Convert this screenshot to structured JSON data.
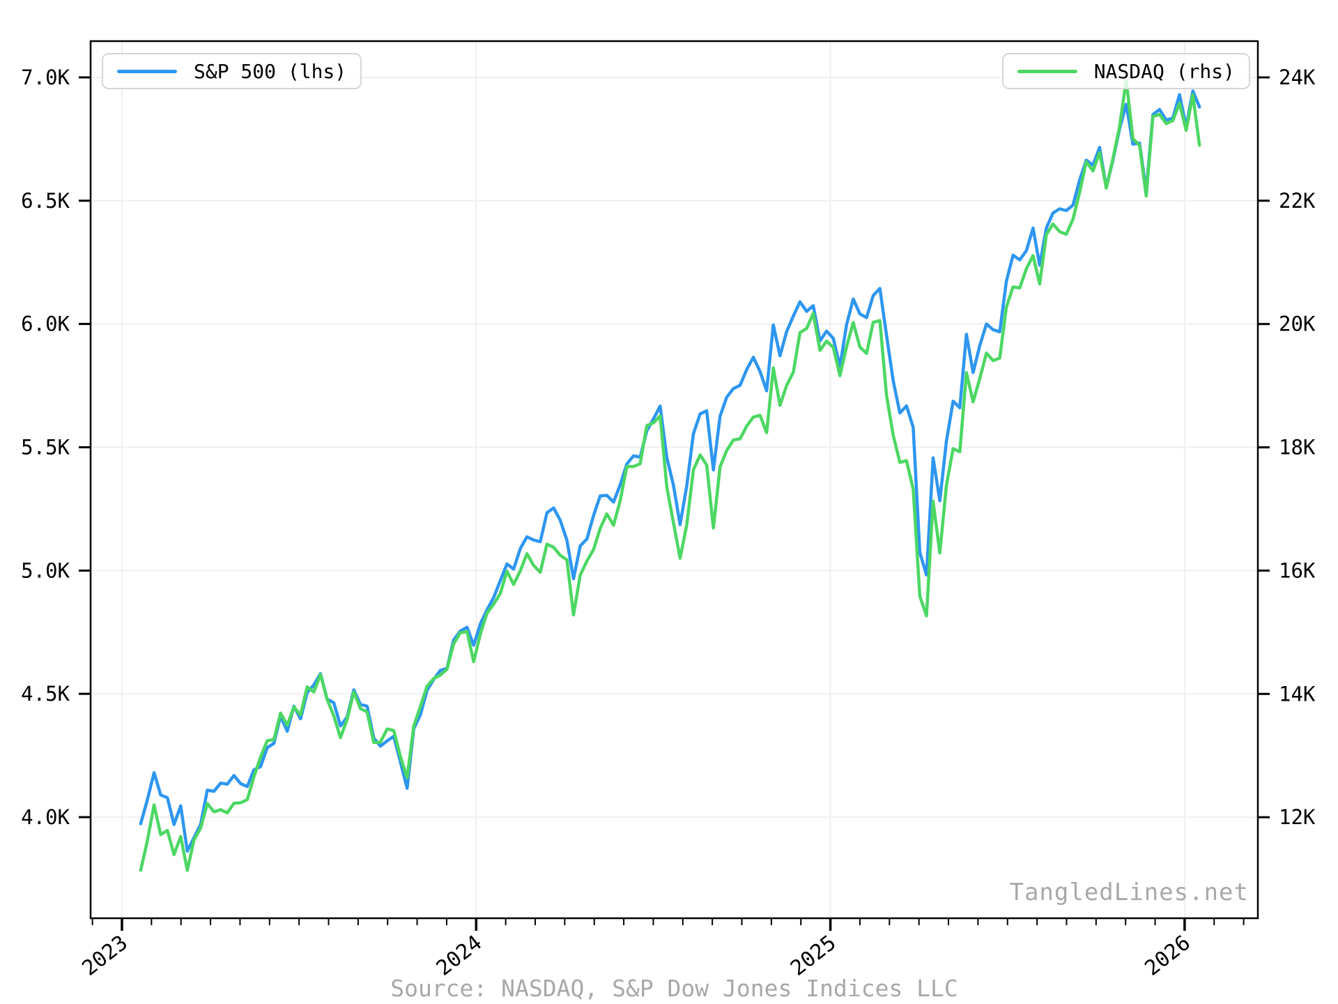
{
  "figure": {
    "watermark": "TangledLines.net",
    "source_note": "Source: NASDAQ, S&P Dow Jones Indices LLC",
    "background": "#ffffff"
  },
  "colors": {
    "sp500_line": "#2d96f0",
    "nasdaq_line": "#4cd763",
    "grid": "#efefef",
    "axis": "#000000",
    "muted_text": "#a8a8a8",
    "legend_border": "#d6d6d6"
  },
  "chart_data": {
    "type": "line",
    "title": "",
    "xlabel": "",
    "ylabel_left": "",
    "ylabel_right": "",
    "grid": true,
    "x_axis": {
      "tick_labels": [
        "2023",
        "2024",
        "2025",
        "2026"
      ],
      "tick_years": [
        2023,
        2024,
        2025,
        2026
      ],
      "minor_tick_interval_months": 1,
      "range_years": [
        2022.911,
        2026.207
      ]
    },
    "left_axis": {
      "tick_labels": [
        "7.0K",
        "6.5K",
        "6.0K",
        "5.5K",
        "5.0K",
        "4.5K",
        "4.0K"
      ],
      "tick_values": [
        7000,
        6500,
        6000,
        5500,
        5000,
        4500,
        4000
      ],
      "range": [
        3590,
        7147
      ]
    },
    "right_axis": {
      "tick_labels": [
        "24K",
        "22K",
        "20K",
        "18K",
        "16K",
        "14K",
        "12K"
      ],
      "tick_values": [
        24000,
        22000,
        20000,
        18000,
        16000,
        14000,
        12000
      ],
      "range": [
        10362,
        24588
      ]
    },
    "legend": [
      {
        "label": "S&P 500 (lhs)",
        "color": "#2d96f0",
        "position": "top-left"
      },
      {
        "label": "NASDAQ (rhs)",
        "color": "#4cd763",
        "position": "top-right"
      }
    ],
    "series": [
      {
        "name": "S&P 500 (lhs)",
        "axis": "left",
        "color": "#2d96f0",
        "x_start_year": 2023.053,
        "x_end_year": 2026.042,
        "values": [
          3973,
          4071,
          4180,
          4090,
          4079,
          3970,
          4046,
          3862,
          3917,
          3971,
          4109,
          4105,
          4138,
          4134,
          4169,
          4136,
          4124,
          4192,
          4205,
          4282,
          4299,
          4410,
          4348,
          4450,
          4399,
          4505,
          4536,
          4582,
          4478,
          4464,
          4370,
          4406,
          4516,
          4457,
          4450,
          4320,
          4288,
          4309,
          4328,
          4224,
          4117,
          4358,
          4415,
          4514,
          4559,
          4595,
          4604,
          4719,
          4755,
          4770,
          4697,
          4784,
          4840,
          4891,
          4959,
          5027,
          5006,
          5089,
          5137,
          5124,
          5117,
          5234,
          5254,
          5204,
          5123,
          4967,
          5100,
          5128,
          5223,
          5303,
          5305,
          5278,
          5347,
          5432,
          5465,
          5460,
          5567,
          5615,
          5667,
          5459,
          5346,
          5186,
          5344,
          5554,
          5635,
          5648,
          5408,
          5626,
          5703,
          5738,
          5751,
          5815,
          5865,
          5808,
          5729,
          5996,
          5871,
          5969,
          6032,
          6090,
          6051,
          6074,
          5931,
          5971,
          5942,
          5827,
          5997,
          6101,
          6041,
          6026,
          6115,
          6144,
          5955,
          5770,
          5639,
          5668,
          5581,
          5074,
          4982,
          5457,
          5283,
          5525,
          5687,
          5660,
          5958,
          5803,
          5912,
          6000,
          5977,
          5968,
          6173,
          6279,
          6260,
          6297,
          6389,
          6238,
          6389,
          6450,
          6467,
          6460,
          6482,
          6584,
          6664,
          6644,
          6716,
          6553,
          6664,
          6792,
          6891,
          6729,
          6734,
          6539,
          6849,
          6870,
          6827,
          6835,
          6930,
          6800,
          6945,
          6880
        ]
      },
      {
        "name": "NASDAQ (rhs)",
        "axis": "right",
        "color": "#4cd763",
        "x_start_year": 2023.053,
        "x_end_year": 2026.042,
        "values": [
          11140,
          11622,
          12200,
          11718,
          11787,
          11395,
          11689,
          11139,
          11631,
          11824,
          12222,
          12088,
          12123,
          12072,
          12227,
          12235,
          12285,
          12658,
          12976,
          13241,
          13259,
          13690,
          13493,
          13788,
          13661,
          14114,
          14033,
          14317,
          13909,
          13645,
          13291,
          13591,
          14032,
          13762,
          13708,
          13212,
          13219,
          13431,
          13407,
          12984,
          12643,
          13478,
          13798,
          14125,
          14251,
          14305,
          14404,
          14814,
          14993,
          15011,
          14524,
          14973,
          15311,
          15455,
          15629,
          15991,
          15776,
          15997,
          16275,
          16085,
          15973,
          16429,
          16379,
          16249,
          16175,
          15282,
          15928,
          16156,
          16341,
          16686,
          16921,
          16735,
          17133,
          17689,
          17689,
          17733,
          18353,
          18398,
          18509,
          17358,
          16776,
          16200,
          16745,
          17632,
          17877,
          17714,
          16691,
          17684,
          17948,
          18120,
          18138,
          18343,
          18490,
          18519,
          18240,
          19287,
          18680,
          19004,
          19218,
          19860,
          19927,
          20174,
          19573,
          19722,
          19622,
          19162,
          19630,
          20024,
          19627,
          19523,
          20027,
          20056,
          18847,
          18196,
          17754,
          17784,
          17323,
          15588,
          15267,
          17124,
          16286,
          17383,
          17978,
          17929,
          19211,
          18737,
          19114,
          19530,
          19407,
          19447,
          20273,
          20601,
          20586,
          20896,
          21108,
          20650,
          21450,
          21623,
          21497,
          21456,
          21700,
          22141,
          22631,
          22484,
          22780,
          22204,
          22680,
          23204,
          23958,
          23005,
          22900,
          22078,
          23366,
          23400,
          23250,
          23300,
          23580,
          23140,
          23720,
          22900
        ]
      }
    ]
  }
}
